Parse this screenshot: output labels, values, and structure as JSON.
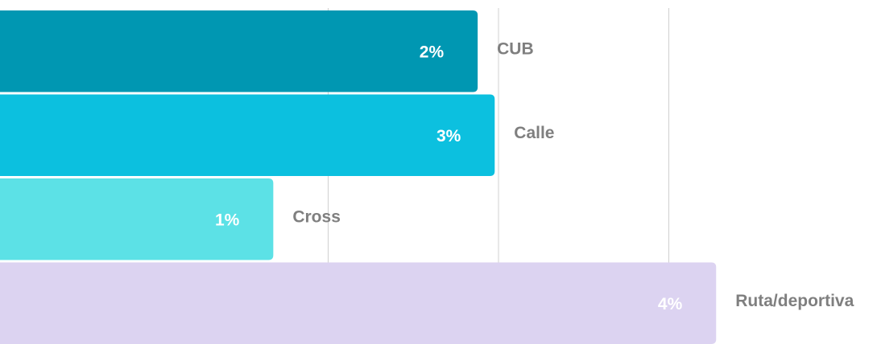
{
  "chart_data": {
    "type": "barh",
    "categories": [
      "CUB",
      "Calle",
      "Cross",
      "Ruta/deportiva"
    ],
    "values": [
      2.49,
      2.58,
      1.41,
      3.75
    ],
    "value_labels": [
      "2%",
      "3%",
      "1%",
      "4%"
    ],
    "colors": [
      "#0097b2",
      "#0cc0df",
      "#5ce1e6",
      "#dcd3f1"
    ],
    "xlim": [
      0,
      4.6
    ],
    "xticks": [
      1.7,
      2.6,
      3.5
    ],
    "grid": true
  }
}
